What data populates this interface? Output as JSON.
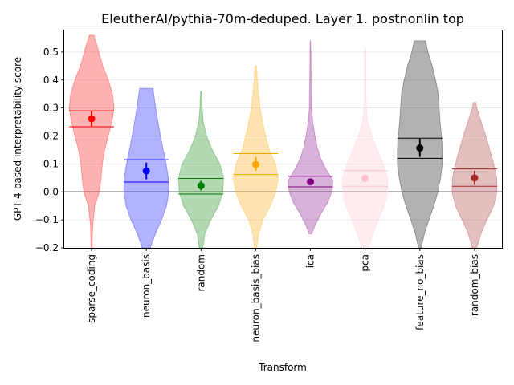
{
  "chart_data": {
    "type": "violin",
    "title": "EleutherAI/pythia-70m-deduped. Layer 1. postnonlin top",
    "xlabel": "Transform",
    "ylabel": "GPT-4-based interpretability score",
    "ylim": [
      -0.2,
      0.58
    ],
    "yticks": [
      -0.2,
      -0.1,
      0.0,
      0.1,
      0.2,
      0.3,
      0.4,
      0.5
    ],
    "ytick_labels": [
      "−0.2",
      "−0.1",
      "0.0",
      "0.1",
      "0.2",
      "0.3",
      "0.4",
      "0.5"
    ],
    "grid": "horizontal",
    "zero_line": 0.0,
    "series": [
      {
        "name": "sparse_coding",
        "color": "#ff0000",
        "mean": 0.262,
        "ci": [
          0.235,
          0.289
        ],
        "q": [
          0.233,
          0.29
        ],
        "min": -0.2,
        "max": 0.56,
        "profile": [
          [
            -0.2,
            0.02
          ],
          [
            -0.12,
            0.05
          ],
          [
            -0.05,
            0.14
          ],
          [
            0.0,
            0.35
          ],
          [
            0.05,
            0.42
          ],
          [
            0.1,
            0.48
          ],
          [
            0.15,
            0.58
          ],
          [
            0.2,
            0.74
          ],
          [
            0.25,
            0.9
          ],
          [
            0.3,
            1.0
          ],
          [
            0.35,
            0.93
          ],
          [
            0.4,
            0.74
          ],
          [
            0.45,
            0.5
          ],
          [
            0.5,
            0.32
          ],
          [
            0.54,
            0.18
          ],
          [
            0.56,
            0.1
          ]
        ]
      },
      {
        "name": "neuron_basis",
        "color": "#0000ff",
        "mean": 0.075,
        "ci": [
          0.045,
          0.105
        ],
        "q": [
          0.035,
          0.115
        ],
        "min": -0.2,
        "max": 0.37,
        "profile": [
          [
            -0.2,
            0.18
          ],
          [
            -0.15,
            0.4
          ],
          [
            -0.1,
            0.68
          ],
          [
            -0.05,
            0.9
          ],
          [
            0.0,
            1.0
          ],
          [
            0.05,
            0.98
          ],
          [
            0.1,
            0.88
          ],
          [
            0.15,
            0.75
          ],
          [
            0.2,
            0.63
          ],
          [
            0.25,
            0.52
          ],
          [
            0.3,
            0.42
          ],
          [
            0.35,
            0.33
          ],
          [
            0.37,
            0.3
          ]
        ]
      },
      {
        "name": "random",
        "color": "#008000",
        "mean": 0.022,
        "ci": [
          0.005,
          0.04
        ],
        "q": [
          -0.008,
          0.048
        ],
        "min": -0.2,
        "max": 0.36,
        "profile": [
          [
            -0.2,
            0.08
          ],
          [
            -0.15,
            0.17
          ],
          [
            -0.1,
            0.43
          ],
          [
            -0.05,
            0.78
          ],
          [
            0.0,
            0.97
          ],
          [
            0.05,
            1.0
          ],
          [
            0.1,
            0.84
          ],
          [
            0.15,
            0.5
          ],
          [
            0.2,
            0.25
          ],
          [
            0.25,
            0.1
          ],
          [
            0.3,
            0.05
          ],
          [
            0.36,
            0.02
          ]
        ]
      },
      {
        "name": "neuron_basis_bias",
        "color": "#ffa500",
        "mean": 0.098,
        "ci": [
          0.075,
          0.125
        ],
        "q": [
          0.062,
          0.137
        ],
        "min": -0.2,
        "max": 0.45,
        "profile": [
          [
            -0.2,
            0.05
          ],
          [
            -0.15,
            0.13
          ],
          [
            -0.1,
            0.32
          ],
          [
            -0.05,
            0.65
          ],
          [
            0.0,
            0.9
          ],
          [
            0.05,
            1.0
          ],
          [
            0.1,
            0.88
          ],
          [
            0.15,
            0.6
          ],
          [
            0.2,
            0.45
          ],
          [
            0.25,
            0.3
          ],
          [
            0.3,
            0.2
          ],
          [
            0.35,
            0.13
          ],
          [
            0.4,
            0.07
          ],
          [
            0.45,
            0.04
          ]
        ]
      },
      {
        "name": "ica",
        "color": "#800080",
        "mean": 0.036,
        "ci": [
          0.025,
          0.048
        ],
        "q": [
          0.018,
          0.056
        ],
        "min": -0.15,
        "max": 0.54,
        "profile": [
          [
            -0.15,
            0.06
          ],
          [
            -0.12,
            0.2
          ],
          [
            -0.08,
            0.45
          ],
          [
            -0.04,
            0.75
          ],
          [
            0.0,
            0.95
          ],
          [
            0.04,
            1.0
          ],
          [
            0.08,
            0.7
          ],
          [
            0.12,
            0.45
          ],
          [
            0.16,
            0.3
          ],
          [
            0.2,
            0.2
          ],
          [
            0.25,
            0.1
          ],
          [
            0.3,
            0.05
          ],
          [
            0.35,
            0.04
          ],
          [
            0.4,
            0.03
          ],
          [
            0.5,
            0.02
          ],
          [
            0.54,
            0.01
          ]
        ]
      },
      {
        "name": "pca",
        "color": "#ffc0cb",
        "mean": 0.048,
        "ci": [
          0.035,
          0.062
        ],
        "q": [
          0.02,
          0.076
        ],
        "min": -0.2,
        "max": 0.51,
        "profile": [
          [
            -0.2,
            0.15
          ],
          [
            -0.15,
            0.35
          ],
          [
            -0.1,
            0.58
          ],
          [
            -0.05,
            0.86
          ],
          [
            0.0,
            1.0
          ],
          [
            0.05,
            1.0
          ],
          [
            0.1,
            0.8
          ],
          [
            0.15,
            0.55
          ],
          [
            0.2,
            0.3
          ],
          [
            0.25,
            0.12
          ],
          [
            0.3,
            0.05
          ],
          [
            0.4,
            0.03
          ],
          [
            0.51,
            0.02
          ]
        ]
      },
      {
        "name": "feature_no_bias",
        "color": "#000000",
        "mean": 0.157,
        "ci": [
          0.125,
          0.19
        ],
        "q": [
          0.12,
          0.192
        ],
        "min": -0.2,
        "max": 0.54,
        "profile": [
          [
            -0.2,
            0.06
          ],
          [
            -0.15,
            0.2
          ],
          [
            -0.1,
            0.4
          ],
          [
            -0.05,
            0.62
          ],
          [
            0.0,
            0.8
          ],
          [
            0.05,
            0.92
          ],
          [
            0.1,
            1.0
          ],
          [
            0.15,
            1.0
          ],
          [
            0.2,
            0.96
          ],
          [
            0.25,
            0.9
          ],
          [
            0.3,
            0.86
          ],
          [
            0.35,
            0.82
          ],
          [
            0.4,
            0.7
          ],
          [
            0.45,
            0.55
          ],
          [
            0.5,
            0.36
          ],
          [
            0.54,
            0.25
          ]
        ]
      },
      {
        "name": "random_bias",
        "color": "#a52a2a",
        "mean": 0.05,
        "ci": [
          0.025,
          0.075
        ],
        "q": [
          0.02,
          0.082
        ],
        "min": -0.2,
        "max": 0.32,
        "profile": [
          [
            -0.2,
            0.1
          ],
          [
            -0.15,
            0.28
          ],
          [
            -0.1,
            0.55
          ],
          [
            -0.05,
            0.85
          ],
          [
            0.0,
            1.0
          ],
          [
            0.05,
            0.98
          ],
          [
            0.1,
            0.85
          ],
          [
            0.15,
            0.68
          ],
          [
            0.2,
            0.5
          ],
          [
            0.25,
            0.3
          ],
          [
            0.3,
            0.1
          ],
          [
            0.32,
            0.06
          ]
        ]
      }
    ]
  }
}
